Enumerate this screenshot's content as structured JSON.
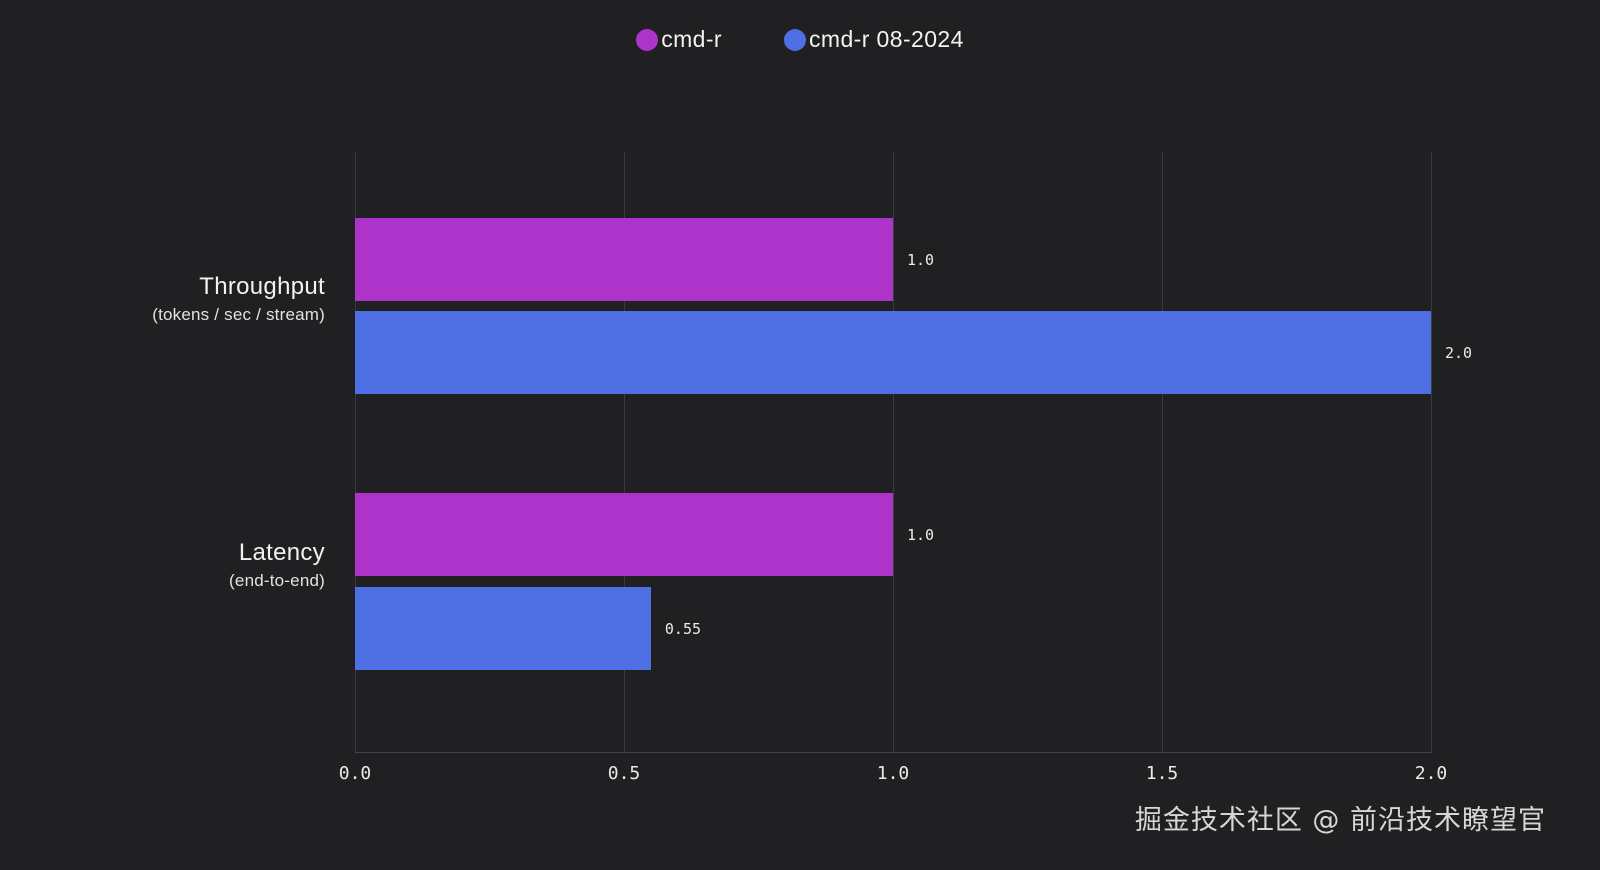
{
  "chart_data": {
    "type": "bar",
    "orientation": "horizontal",
    "title": "",
    "categories": [
      {
        "label": "Throughput",
        "sublabel": "(tokens / sec / stream)"
      },
      {
        "label": "Latency",
        "sublabel": "(end-to-end)"
      }
    ],
    "series": [
      {
        "name": "cmd-r",
        "color": "#ad34cb",
        "values": [
          1.0,
          1.0
        ],
        "labels": [
          "1.0",
          "1.0"
        ]
      },
      {
        "name": "cmd-r 08-2024",
        "color": "#4d6fe3",
        "values": [
          2.0,
          0.55
        ],
        "labels": [
          "2.0",
          "0.55"
        ]
      }
    ],
    "xticks": [
      "0.0",
      "0.5",
      "1.0",
      "1.5",
      "2.0"
    ],
    "xlim": [
      0,
      2
    ],
    "grid": true,
    "legend_position": "top-center"
  },
  "colors": {
    "background": "#202022",
    "gridline": "#3a3a3d",
    "text": "#f2f2f2",
    "series_magenta": "#ad34cb",
    "series_blue": "#4d6fe3"
  },
  "watermark": "掘金技术社区 @ 前沿技术瞭望官"
}
